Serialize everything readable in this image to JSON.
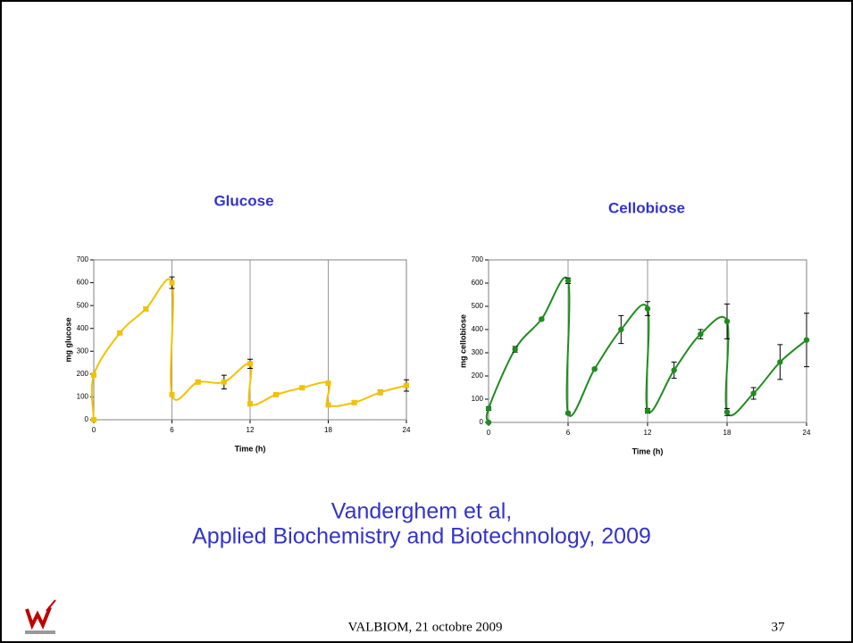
{
  "chart_data": [
    {
      "type": "line",
      "title": "Glucose",
      "xlabel": "Time (h)",
      "ylabel": "mg glucose",
      "xlim": [
        0,
        24
      ],
      "ylim": [
        0,
        700
      ],
      "xticks": [
        0,
        6,
        12,
        18,
        24
      ],
      "yticks": [
        0,
        100,
        200,
        300,
        400,
        500,
        600,
        700
      ],
      "grid": true,
      "marker": "square",
      "x": [
        0,
        0,
        2,
        4,
        6,
        6,
        8,
        10,
        12,
        12,
        14,
        16,
        18,
        18,
        20,
        22,
        24
      ],
      "series": [
        {
          "color": "#f2c200",
          "values": [
            0,
            195,
            380,
            485,
            600,
            110,
            165,
            165,
            245,
            70,
            110,
            140,
            160,
            65,
            75,
            120,
            150
          ],
          "errors": [
            5,
            8,
            8,
            8,
            25,
            8,
            8,
            30,
            20,
            5,
            5,
            5,
            5,
            5,
            8,
            10,
            25
          ]
        }
      ]
    },
    {
      "type": "line",
      "title": "Cellobiose",
      "xlabel": "Time (h)",
      "ylabel": "mg cellobiose",
      "xlim": [
        0,
        24
      ],
      "ylim": [
        0,
        700
      ],
      "xticks": [
        0,
        6,
        12,
        18,
        24
      ],
      "yticks": [
        0,
        100,
        200,
        300,
        400,
        500,
        600,
        700
      ],
      "grid": true,
      "marker": "circle",
      "x": [
        0,
        0,
        2,
        4,
        6,
        6,
        8,
        10,
        12,
        12,
        14,
        16,
        18,
        18,
        20,
        22,
        24
      ],
      "series": [
        {
          "color": "#1e8c1e",
          "values": [
            0,
            60,
            315,
            445,
            610,
            40,
            230,
            400,
            490,
            50,
            225,
            380,
            435,
            45,
            125,
            260,
            355
          ],
          "errors": [
            3,
            8,
            12,
            5,
            12,
            5,
            5,
            60,
            30,
            10,
            35,
            20,
            75,
            15,
            25,
            75,
            115
          ]
        }
      ]
    }
  ],
  "citation": [
    "Vanderghem et al,",
    "Applied Biochemistry and Biotechnology, 2009"
  ],
  "footer": {
    "event": "VALBIOM,  21 octobre 2009",
    "page": "37"
  }
}
